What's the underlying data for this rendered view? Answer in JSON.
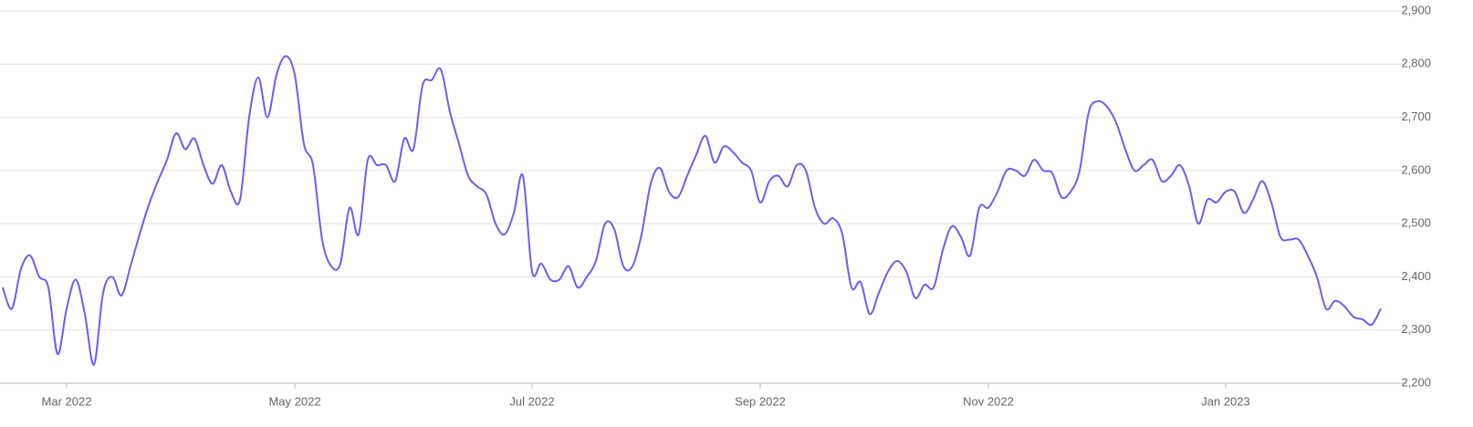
{
  "chart_data": {
    "type": "line",
    "categories": [
      null,
      null,
      null,
      null,
      null,
      null,
      null,
      "Mar 2022",
      null,
      null,
      null,
      null,
      null,
      null,
      null,
      null,
      null,
      null,
      null,
      null,
      null,
      null,
      null,
      null,
      null,
      null,
      null,
      null,
      null,
      null,
      null,
      null,
      "May 2022",
      null,
      null,
      null,
      null,
      null,
      null,
      null,
      null,
      null,
      null,
      null,
      null,
      null,
      null,
      null,
      null,
      null,
      null,
      null,
      null,
      null,
      null,
      null,
      null,
      null,
      "Jul 2022",
      null,
      null,
      null,
      null,
      null,
      null,
      null,
      null,
      null,
      null,
      null,
      null,
      null,
      null,
      null,
      null,
      null,
      null,
      null,
      null,
      null,
      null,
      null,
      null,
      "Sep 2022",
      null,
      null,
      null,
      null,
      null,
      null,
      null,
      null,
      null,
      null,
      null,
      null,
      null,
      null,
      null,
      null,
      null,
      null,
      null,
      null,
      null,
      null,
      null,
      null,
      "Nov 2022",
      null,
      null,
      null,
      null,
      null,
      null,
      null,
      null,
      null,
      null,
      null,
      null,
      null,
      null,
      null,
      null,
      null,
      null,
      null,
      null,
      null,
      null,
      null,
      null,
      null,
      "Jan 2023",
      null,
      null,
      null,
      null,
      null,
      null,
      null,
      null,
      null,
      null,
      null,
      null,
      null,
      null,
      null,
      null,
      null
    ],
    "series": [
      {
        "color": "#6a5ff0",
        "values": [
          2380,
          2340,
          2415,
          2440,
          2400,
          2380,
          2255,
          2340,
          2395,
          2330,
          2235,
          2370,
          2400,
          2365,
          2420,
          2480,
          2535,
          2580,
          2620,
          2670,
          2640,
          2660,
          2610,
          2575,
          2610,
          2560,
          2545,
          2700,
          2775,
          2700,
          2780,
          2815,
          2780,
          2650,
          2610,
          2470,
          2420,
          2425,
          2530,
          2480,
          2620,
          2610,
          2610,
          2580,
          2660,
          2640,
          2760,
          2770,
          2790,
          2710,
          2650,
          2590,
          2570,
          2555,
          2500,
          2480,
          2520,
          2590,
          2410,
          2425,
          2395,
          2395,
          2420,
          2380,
          2400,
          2430,
          2500,
          2490,
          2420,
          2420,
          2480,
          2575,
          2605,
          2560,
          2550,
          2590,
          2630,
          2665,
          2615,
          2645,
          2635,
          2615,
          2600,
          2540,
          2580,
          2590,
          2570,
          2610,
          2600,
          2530,
          2500,
          2510,
          2480,
          2380,
          2390,
          2330,
          2370,
          2410,
          2430,
          2410,
          2360,
          2385,
          2380,
          2450,
          2495,
          2475,
          2440,
          2530,
          2530,
          2560,
          2600,
          2600,
          2590,
          2620,
          2600,
          2595,
          2550,
          2560,
          2600,
          2710,
          2730,
          2720,
          2690,
          2640,
          2600,
          2610,
          2620,
          2580,
          2590,
          2610,
          2570,
          2500,
          2545,
          2540,
          2560,
          2560,
          2520,
          2545,
          2580,
          2540,
          2475,
          2470,
          2470,
          2440,
          2400,
          2340,
          2355,
          2345,
          2325,
          2320,
          2310,
          2340
        ]
      }
    ],
    "ylim": [
      2200,
      2900
    ],
    "yticks": [
      {
        "value": 2200,
        "label": "2,200"
      },
      {
        "value": 2300,
        "label": "2,300"
      },
      {
        "value": 2400,
        "label": "2,400"
      },
      {
        "value": 2500,
        "label": "2,500"
      },
      {
        "value": 2600,
        "label": "2,600"
      },
      {
        "value": 2700,
        "label": "2,700"
      },
      {
        "value": 2800,
        "label": "2,800"
      },
      {
        "value": 2900,
        "label": "2,900"
      }
    ],
    "grid": true
  }
}
